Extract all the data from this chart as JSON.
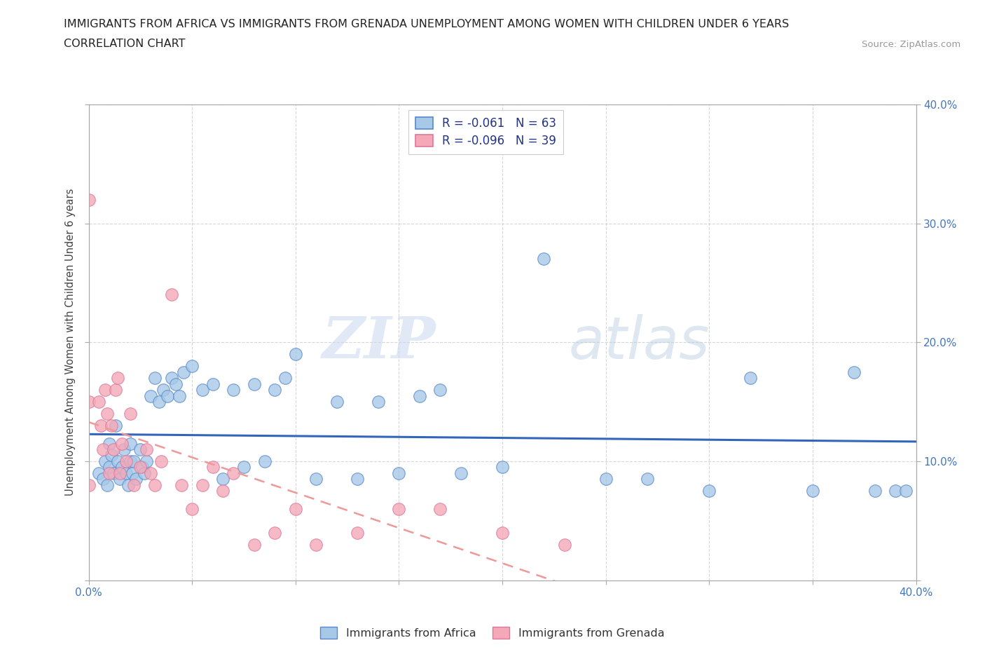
{
  "title_line1": "IMMIGRANTS FROM AFRICA VS IMMIGRANTS FROM GRENADA UNEMPLOYMENT AMONG WOMEN WITH CHILDREN UNDER 6 YEARS",
  "title_line2": "CORRELATION CHART",
  "source_text": "Source: ZipAtlas.com",
  "ylabel": "Unemployment Among Women with Children Under 6 years",
  "xlim": [
    0.0,
    0.4
  ],
  "ylim": [
    0.0,
    0.4
  ],
  "x_ticks": [
    0.0,
    0.05,
    0.1,
    0.15,
    0.2,
    0.25,
    0.3,
    0.35,
    0.4
  ],
  "y_ticks": [
    0.0,
    0.1,
    0.2,
    0.3,
    0.4
  ],
  "x_tick_labels": [
    "0.0%",
    "",
    "",
    "",
    "",
    "",
    "",
    "",
    "40.0%"
  ],
  "y_tick_labels_left": [
    "",
    "",
    "",
    "",
    ""
  ],
  "y_tick_labels_right": [
    "",
    "10.0%",
    "20.0%",
    "30.0%",
    "40.0%"
  ],
  "africa_color": "#a8c8e8",
  "grenada_color": "#f4a8b8",
  "africa_edge_color": "#5588cc",
  "grenada_edge_color": "#dd7799",
  "trend_africa_color": "#3366bb",
  "trend_grenada_color": "#ee9999",
  "legend_africa_label": "Immigrants from Africa",
  "legend_grenada_label": "Immigrants from Grenada",
  "R_africa": "-0.061",
  "N_africa": "63",
  "R_grenada": "-0.096",
  "N_grenada": "39",
  "watermark_zip": "ZIP",
  "watermark_atlas": "atlas",
  "africa_x": [
    0.005,
    0.007,
    0.008,
    0.009,
    0.01,
    0.01,
    0.011,
    0.012,
    0.013,
    0.014,
    0.015,
    0.016,
    0.017,
    0.018,
    0.019,
    0.02,
    0.02,
    0.021,
    0.022,
    0.023,
    0.025,
    0.026,
    0.027,
    0.028,
    0.03,
    0.032,
    0.034,
    0.036,
    0.038,
    0.04,
    0.042,
    0.044,
    0.046,
    0.05,
    0.055,
    0.06,
    0.065,
    0.07,
    0.075,
    0.08,
    0.085,
    0.09,
    0.095,
    0.1,
    0.11,
    0.12,
    0.13,
    0.14,
    0.15,
    0.16,
    0.17,
    0.18,
    0.2,
    0.22,
    0.25,
    0.27,
    0.3,
    0.32,
    0.35,
    0.37,
    0.38,
    0.39,
    0.395
  ],
  "africa_y": [
    0.09,
    0.085,
    0.1,
    0.08,
    0.095,
    0.115,
    0.105,
    0.09,
    0.13,
    0.1,
    0.085,
    0.095,
    0.11,
    0.09,
    0.08,
    0.1,
    0.115,
    0.09,
    0.1,
    0.085,
    0.11,
    0.095,
    0.09,
    0.1,
    0.155,
    0.17,
    0.15,
    0.16,
    0.155,
    0.17,
    0.165,
    0.155,
    0.175,
    0.18,
    0.16,
    0.165,
    0.085,
    0.16,
    0.095,
    0.165,
    0.1,
    0.16,
    0.17,
    0.19,
    0.085,
    0.15,
    0.085,
    0.15,
    0.09,
    0.155,
    0.16,
    0.09,
    0.095,
    0.27,
    0.085,
    0.085,
    0.075,
    0.17,
    0.075,
    0.175,
    0.075,
    0.075,
    0.075
  ],
  "grenada_x": [
    0.0,
    0.0,
    0.0,
    0.005,
    0.006,
    0.007,
    0.008,
    0.009,
    0.01,
    0.011,
    0.012,
    0.013,
    0.014,
    0.015,
    0.016,
    0.018,
    0.02,
    0.022,
    0.025,
    0.028,
    0.03,
    0.032,
    0.035,
    0.04,
    0.045,
    0.05,
    0.055,
    0.06,
    0.065,
    0.07,
    0.08,
    0.09,
    0.1,
    0.11,
    0.13,
    0.15,
    0.17,
    0.2,
    0.23
  ],
  "grenada_y": [
    0.08,
    0.15,
    0.32,
    0.15,
    0.13,
    0.11,
    0.16,
    0.14,
    0.09,
    0.13,
    0.11,
    0.16,
    0.17,
    0.09,
    0.115,
    0.1,
    0.14,
    0.08,
    0.095,
    0.11,
    0.09,
    0.08,
    0.1,
    0.24,
    0.08,
    0.06,
    0.08,
    0.095,
    0.075,
    0.09,
    0.03,
    0.04,
    0.06,
    0.03,
    0.04,
    0.06,
    0.06,
    0.04,
    0.03
  ]
}
